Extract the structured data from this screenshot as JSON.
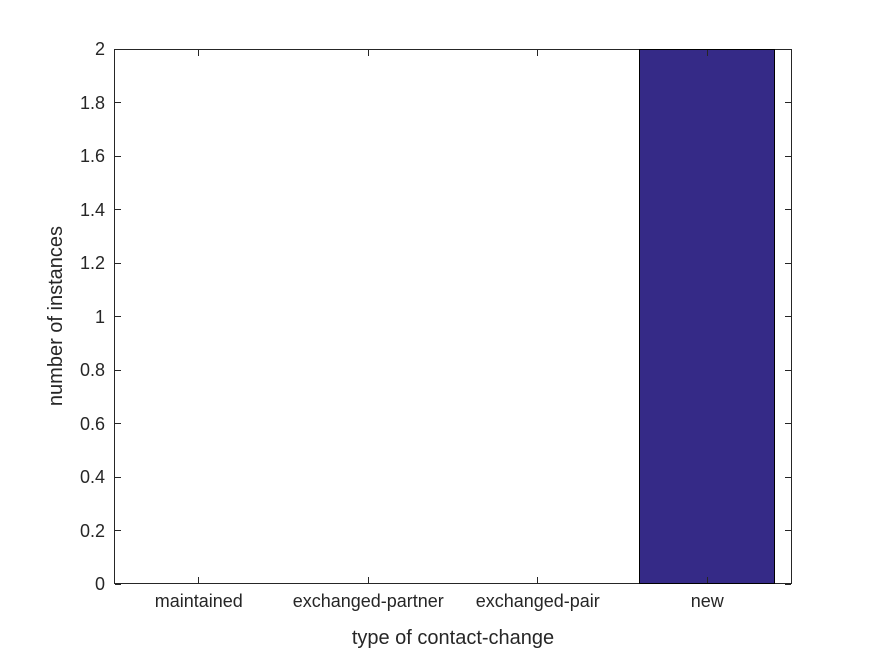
{
  "chart_data": {
    "type": "bar",
    "title": "",
    "categories": [
      "maintained",
      "exchanged-partner",
      "exchanged-pair",
      "new"
    ],
    "values": [
      0,
      0,
      0,
      2
    ],
    "xlabel": "type of contact-change",
    "ylabel": "number of instances",
    "ylim": [
      0,
      2
    ],
    "yticks": [
      0,
      0.2,
      0.4,
      0.6,
      0.8,
      1,
      1.2,
      1.4,
      1.6,
      1.8,
      2
    ],
    "ytick_labels": [
      "0",
      "0.2",
      "0.4",
      "0.6",
      "0.8",
      "1",
      "1.2",
      "1.4",
      "1.6",
      "1.8",
      "2"
    ],
    "grid": false,
    "box": true,
    "tick_direction": "in",
    "legend_position": "none",
    "bar_width_fraction": 0.8,
    "colors": {
      "bar_fill": "#352A87",
      "bar_edge": "#000000",
      "axis": "#262626",
      "text": "#262626",
      "background": "#FFFFFF"
    }
  }
}
